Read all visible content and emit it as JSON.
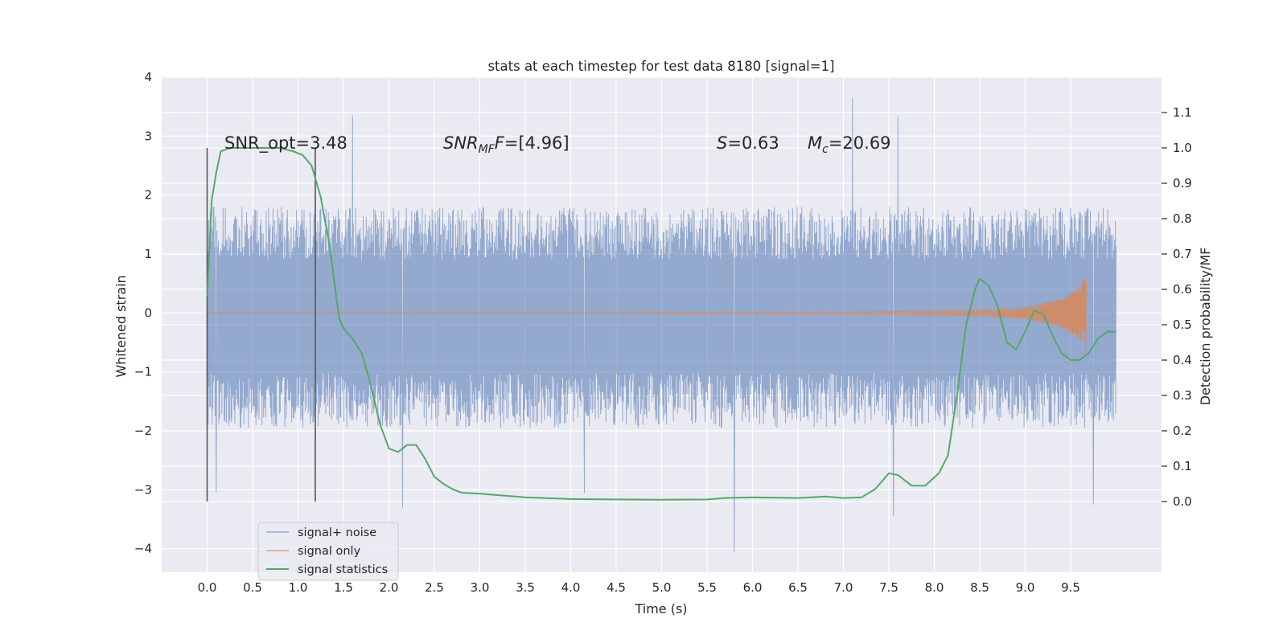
{
  "chart_data": {
    "type": "line",
    "title": "stats at each timestep for test data 8180 [signal=1]",
    "xlabel": "Time (s)",
    "ylabel_left": "Whitened strain",
    "ylabel_right": "Detection probability/MF",
    "xlim": [
      -0.5,
      10.5
    ],
    "ylim_left": [
      -4.4,
      4.0
    ],
    "ylim_right": [
      -0.2,
      1.2
    ],
    "x_ticks": [
      "0.0",
      "0.5",
      "1.0",
      "1.5",
      "2.0",
      "2.5",
      "3.0",
      "3.5",
      "4.0",
      "4.5",
      "5.0",
      "5.5",
      "6.0",
      "6.5",
      "7.0",
      "7.5",
      "8.0",
      "8.5",
      "9.0",
      "9.5"
    ],
    "y_left_ticks": [
      "4",
      "3",
      "2",
      "1",
      "0",
      "−1",
      "−2",
      "−3",
      "−4"
    ],
    "y_right_ticks": [
      "1.1",
      "1.0",
      "0.9",
      "0.8",
      "0.7",
      "0.6",
      "0.5",
      "0.4",
      "0.3",
      "0.2",
      "0.1",
      "0.0"
    ],
    "grid": true,
    "legend_position": "lower-left",
    "annotations": {
      "snr_opt": "SNR_opt=3.48",
      "snr_mf_base": "SNR",
      "snr_mf_sub": "MF",
      "snr_mf_value": "=[4.96]",
      "s_symbol": "S",
      "s_value": "=0.63",
      "mc_symbol": "M",
      "mc_sub": "c",
      "mc_value": "=20.69"
    },
    "markers": [
      {
        "x": 0.0,
        "y_range": [
          -3.2,
          2.8
        ]
      },
      {
        "x": 1.19,
        "y_range": [
          -3.2,
          2.8
        ]
      }
    ],
    "series": [
      {
        "name": "signal+ noise",
        "color": "#4c72b0",
        "x_range": [
          0.0,
          10.0
        ],
        "noise_band_center": 0.0,
        "noise_band_typical": [
          -1.7,
          1.5
        ],
        "noise_peaks": [
          {
            "x": 0.1,
            "y": -3.05
          },
          {
            "x": 1.6,
            "y": 3.35
          },
          {
            "x": 2.15,
            "y": -3.3
          },
          {
            "x": 4.15,
            "y": -3.05
          },
          {
            "x": 5.8,
            "y": -4.05
          },
          {
            "x": 7.1,
            "y": 3.65
          },
          {
            "x": 7.55,
            "y": -3.45
          },
          {
            "x": 7.6,
            "y": 3.35
          },
          {
            "x": 9.75,
            "y": -3.25
          }
        ]
      },
      {
        "name": "signal only",
        "color": "#dd8452",
        "x_range": [
          0.0,
          9.67
        ],
        "note_points": [
          {
            "x": 0.0,
            "amp": 0.0
          },
          {
            "x": 7.0,
            "amp": 0.02
          },
          {
            "x": 8.5,
            "amp": 0.05
          },
          {
            "x": 9.0,
            "amp": 0.1
          },
          {
            "x": 9.4,
            "amp": 0.25
          },
          {
            "x": 9.6,
            "amp": 0.45
          },
          {
            "x": 9.67,
            "amp": 0.65
          }
        ]
      },
      {
        "name": "signal statistics",
        "color": "#55a868",
        "axis": "right",
        "x": [
          0.0,
          0.05,
          0.1,
          0.15,
          0.25,
          0.4,
          0.6,
          0.8,
          0.95,
          1.05,
          1.15,
          1.25,
          1.35,
          1.45,
          1.5,
          1.6,
          1.7,
          1.8,
          1.9,
          2.0,
          2.1,
          2.2,
          2.3,
          2.4,
          2.5,
          2.6,
          2.7,
          2.8,
          3.0,
          3.5,
          4.0,
          4.5,
          5.0,
          5.5,
          5.7,
          6.0,
          6.5,
          6.8,
          7.0,
          7.2,
          7.35,
          7.5,
          7.6,
          7.75,
          7.9,
          8.05,
          8.15,
          8.25,
          8.35,
          8.45,
          8.5,
          8.6,
          8.7,
          8.8,
          8.9,
          9.0,
          9.1,
          9.2,
          9.3,
          9.4,
          9.5,
          9.6,
          9.7,
          9.8,
          9.9,
          10.0
        ],
        "y": [
          0.58,
          0.85,
          0.93,
          0.99,
          1.0,
          1.0,
          1.0,
          1.0,
          0.99,
          0.98,
          0.95,
          0.86,
          0.72,
          0.52,
          0.49,
          0.46,
          0.42,
          0.33,
          0.22,
          0.15,
          0.14,
          0.16,
          0.16,
          0.12,
          0.07,
          0.05,
          0.035,
          0.025,
          0.022,
          0.012,
          0.007,
          0.006,
          0.005,
          0.006,
          0.01,
          0.012,
          0.01,
          0.014,
          0.01,
          0.012,
          0.035,
          0.08,
          0.075,
          0.045,
          0.045,
          0.08,
          0.13,
          0.3,
          0.5,
          0.6,
          0.63,
          0.61,
          0.55,
          0.45,
          0.43,
          0.48,
          0.54,
          0.53,
          0.47,
          0.42,
          0.4,
          0.4,
          0.42,
          0.46,
          0.48,
          0.48
        ]
      }
    ]
  }
}
